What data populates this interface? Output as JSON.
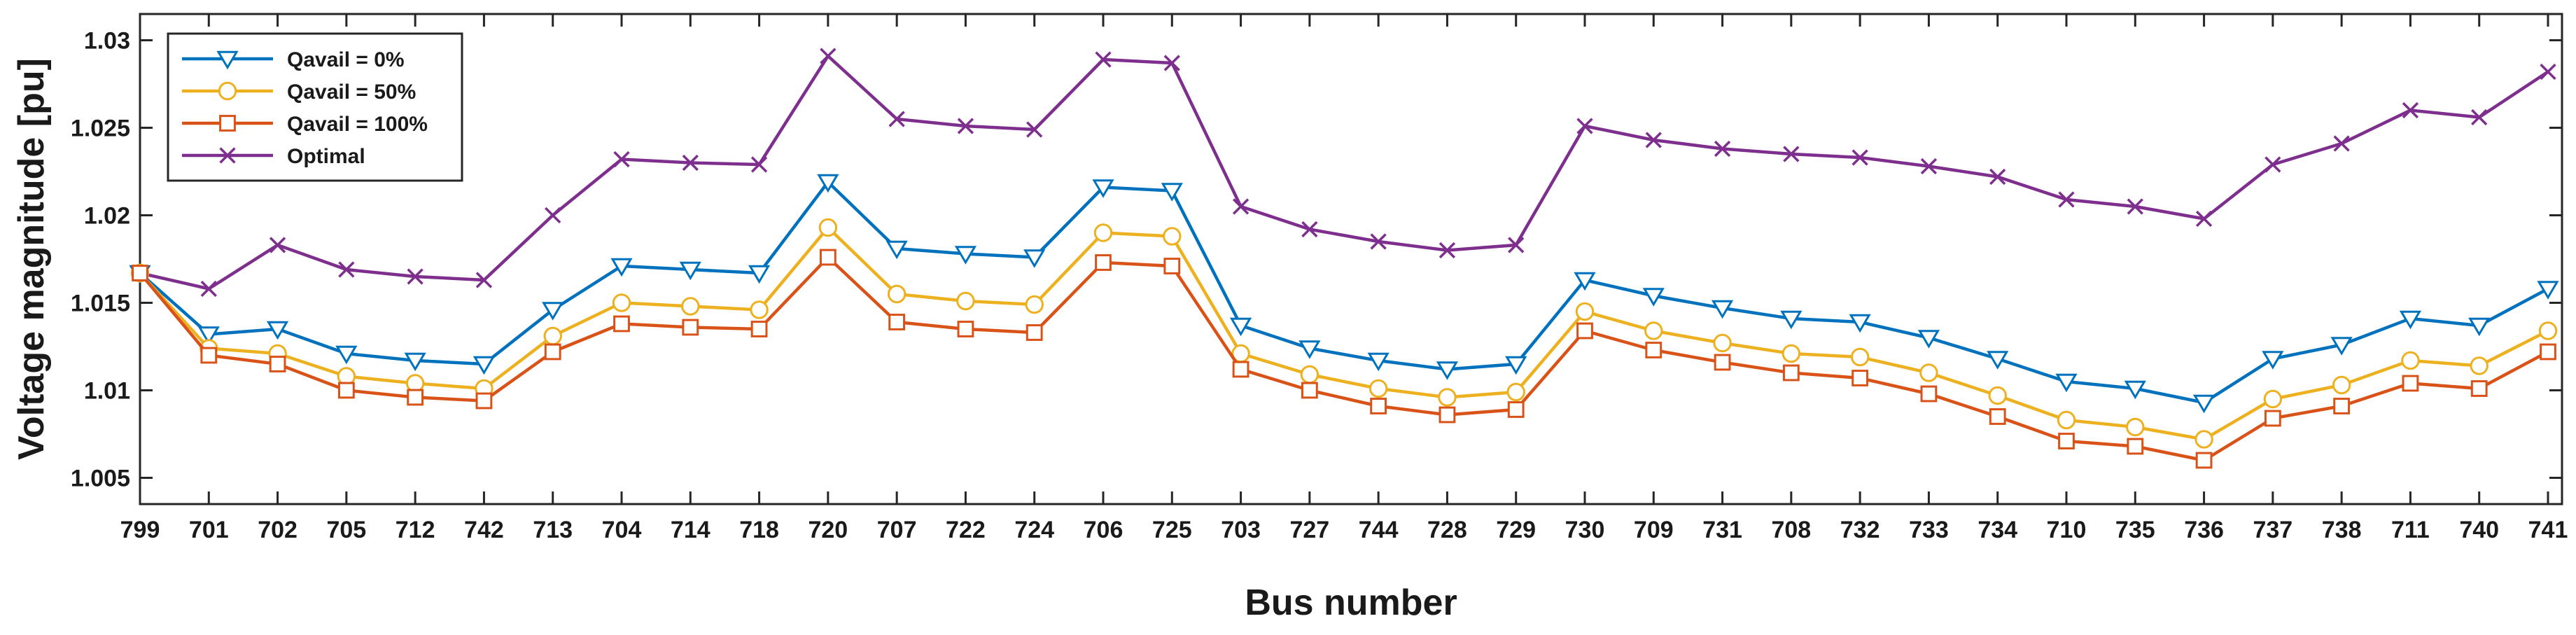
{
  "chart_data": {
    "type": "line",
    "xlabel": "Bus number",
    "ylabel": "Voltage magnitude [pu]",
    "ylim": [
      1.0035,
      1.0315
    ],
    "yticks": [
      1.005,
      1.01,
      1.015,
      1.02,
      1.025,
      1.03
    ],
    "ytick_labels": [
      "1.005",
      "1.01",
      "1.015",
      "1.02",
      "1.025",
      "1.03"
    ],
    "grid": false,
    "legend_position": "top-left",
    "categories": [
      "799",
      "701",
      "702",
      "705",
      "712",
      "742",
      "713",
      "704",
      "714",
      "718",
      "720",
      "707",
      "722",
      "724",
      "706",
      "725",
      "703",
      "727",
      "744",
      "728",
      "729",
      "730",
      "709",
      "731",
      "708",
      "732",
      "733",
      "734",
      "710",
      "735",
      "736",
      "737",
      "738",
      "711",
      "740",
      "741"
    ],
    "series": [
      {
        "name": "Qavail = 0%",
        "color": "#0072BD",
        "marker": "triangle-down",
        "values": [
          1.0167,
          1.0132,
          1.0135,
          1.0121,
          1.0117,
          1.0115,
          1.0146,
          1.0171,
          1.0169,
          1.0167,
          1.0219,
          1.0181,
          1.0178,
          1.0176,
          1.0216,
          1.0214,
          1.0137,
          1.0124,
          1.0117,
          1.0112,
          1.0115,
          1.0163,
          1.0154,
          1.0147,
          1.0141,
          1.0139,
          1.013,
          1.0118,
          1.0105,
          1.0101,
          1.0093,
          1.0118,
          1.0126,
          1.0141,
          1.0137,
          1.0158
        ]
      },
      {
        "name": "Qavail = 50%",
        "color": "#EDB120",
        "marker": "circle",
        "values": [
          1.0167,
          1.0124,
          1.0121,
          1.0108,
          1.0104,
          1.0101,
          1.0131,
          1.015,
          1.0148,
          1.0146,
          1.0193,
          1.0155,
          1.0151,
          1.0149,
          1.019,
          1.0188,
          1.0121,
          1.0109,
          1.0101,
          1.0096,
          1.0099,
          1.0145,
          1.0134,
          1.0127,
          1.0121,
          1.0119,
          1.011,
          1.0097,
          1.0083,
          1.0079,
          1.0072,
          1.0095,
          1.0103,
          1.0117,
          1.0114,
          1.0134
        ]
      },
      {
        "name": "Qavail = 100%",
        "color": "#D95319",
        "marker": "square",
        "values": [
          1.0167,
          1.012,
          1.0115,
          1.01,
          1.0096,
          1.0094,
          1.0122,
          1.0138,
          1.0136,
          1.0135,
          1.0176,
          1.0139,
          1.0135,
          1.0133,
          1.0173,
          1.0171,
          1.0112,
          1.01,
          1.0091,
          1.0086,
          1.0089,
          1.0134,
          1.0123,
          1.0116,
          1.011,
          1.0107,
          1.0098,
          1.0085,
          1.0071,
          1.0068,
          1.006,
          1.0084,
          1.0091,
          1.0104,
          1.0101,
          1.0122
        ]
      },
      {
        "name": "Optimal",
        "color": "#7E2F8E",
        "marker": "x",
        "values": [
          1.0167,
          1.0158,
          1.0183,
          1.0169,
          1.0165,
          1.0163,
          1.02,
          1.0232,
          1.023,
          1.0229,
          1.0291,
          1.0255,
          1.0251,
          1.0249,
          1.0289,
          1.0287,
          1.0205,
          1.0192,
          1.0185,
          1.018,
          1.0183,
          1.0251,
          1.0243,
          1.0238,
          1.0235,
          1.0233,
          1.0228,
          1.0222,
          1.0209,
          1.0205,
          1.0198,
          1.0229,
          1.0241,
          1.026,
          1.0256,
          1.0282
        ]
      }
    ]
  }
}
